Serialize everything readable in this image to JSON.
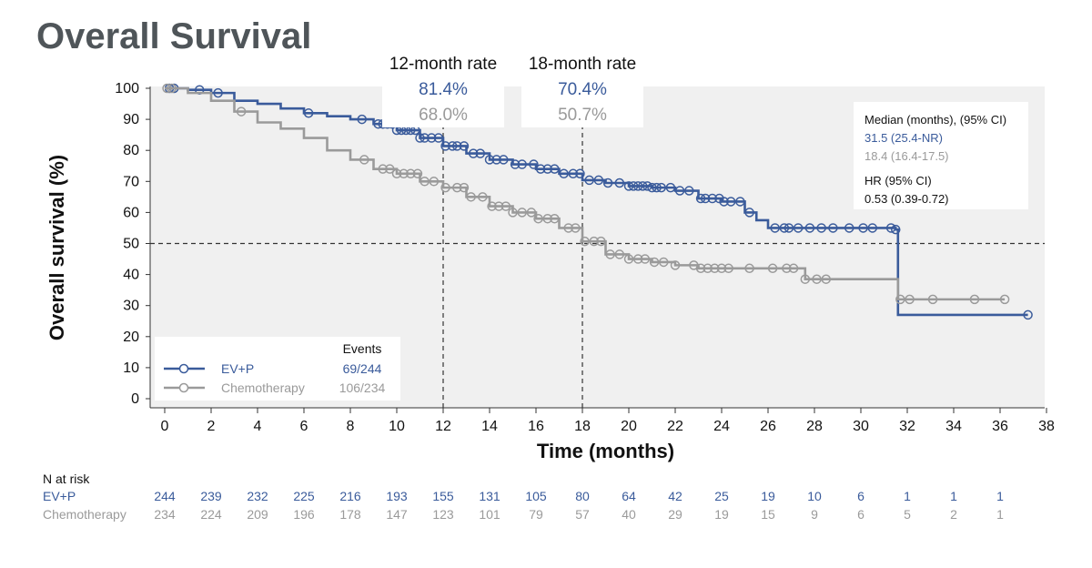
{
  "title": "Overall Survival",
  "colors": {
    "ev": "#3a5b9b",
    "chemo": "#9a9a9a",
    "text": "#111111",
    "panel": "#f0f0f0"
  },
  "chart_data": {
    "type": "line",
    "subtype": "kaplan-meier step plot with censor markers",
    "xlabel": "Time (months)",
    "ylabel": "Overall survival (%)",
    "xlim": [
      0,
      38
    ],
    "ylim": [
      0,
      100
    ],
    "xticks": [
      0,
      2,
      4,
      6,
      8,
      10,
      12,
      14,
      16,
      18,
      20,
      22,
      24,
      26,
      28,
      30,
      32,
      34,
      36,
      38
    ],
    "yticks": [
      0,
      10,
      20,
      30,
      40,
      50,
      60,
      70,
      80,
      90,
      100
    ],
    "grid": false,
    "reference_lines": {
      "horizontal_y": 50,
      "vertical_x": [
        12,
        18
      ]
    },
    "rate_boxes": [
      {
        "label": "12-month rate",
        "ev": "81.4%",
        "chemo": "68.0%",
        "x": 12
      },
      {
        "label": "18-month rate",
        "ev": "70.4%",
        "chemo": "50.7%",
        "x": 18
      }
    ],
    "stats_box": {
      "median_header": "Median (months), (95% CI)",
      "median_ev": "31.5 (25.4-NR)",
      "median_chemo": "18.4 (16.4-17.5)",
      "hr_header": "HR (95% CI)",
      "hr_value": "0.53 (0.39-0.72)"
    },
    "legend": {
      "position": "bottom-left",
      "events_header": "Events",
      "entries": [
        {
          "name": "EV+P",
          "events": "69/244"
        },
        {
          "name": "Chemotherapy",
          "events": "106/234"
        }
      ]
    },
    "series": [
      {
        "name": "EV+P",
        "step_points": [
          [
            0,
            100
          ],
          [
            1,
            99.5
          ],
          [
            2,
            98.5
          ],
          [
            3,
            96
          ],
          [
            4,
            95
          ],
          [
            5,
            93.5
          ],
          [
            6,
            92
          ],
          [
            7,
            91
          ],
          [
            8,
            90
          ],
          [
            9,
            88.5
          ],
          [
            10,
            86.5
          ],
          [
            11,
            84
          ],
          [
            12,
            81.4
          ],
          [
            13,
            79
          ],
          [
            14,
            77
          ],
          [
            15,
            75.5
          ],
          [
            16,
            74
          ],
          [
            17,
            72.5
          ],
          [
            18,
            70.4
          ],
          [
            19,
            69.5
          ],
          [
            20,
            68.5
          ],
          [
            21,
            68
          ],
          [
            22,
            67
          ],
          [
            23,
            64.5
          ],
          [
            24,
            63.5
          ],
          [
            25,
            60
          ],
          [
            25.5,
            57.5
          ],
          [
            26,
            55
          ],
          [
            30,
            55
          ],
          [
            31.5,
            54.5
          ],
          [
            31.6,
            27
          ],
          [
            37.2,
            27
          ]
        ],
        "censor_x": [
          0.2,
          0.4,
          1.5,
          2.3,
          6.2,
          8.5,
          9.2,
          9.4,
          9.6,
          9.8,
          10,
          10.2,
          10.4,
          10.6,
          10.8,
          11,
          11.2,
          11.5,
          11.8,
          12.1,
          12.4,
          12.6,
          12.9,
          13.3,
          13.6,
          14,
          14.3,
          14.6,
          15.1,
          15.4,
          15.9,
          16.2,
          16.5,
          16.8,
          17.2,
          17.6,
          17.9,
          18.3,
          18.7,
          19.1,
          19.6,
          20,
          20.2,
          20.4,
          20.6,
          20.8,
          21,
          21.2,
          21.4,
          21.8,
          22.2,
          22.6,
          23.1,
          23.3,
          23.6,
          23.9,
          24.1,
          24.4,
          24.8,
          25.2,
          26.3,
          26.7,
          26.9,
          27.3,
          27.8,
          28.3,
          28.8,
          29.5,
          30.1,
          30.5,
          31.3,
          31.5,
          37.2
        ]
      },
      {
        "name": "Chemotherapy",
        "step_points": [
          [
            0,
            100
          ],
          [
            1,
            98.5
          ],
          [
            2,
            96
          ],
          [
            3,
            92.5
          ],
          [
            4,
            89
          ],
          [
            5,
            87
          ],
          [
            6,
            84
          ],
          [
            7,
            80
          ],
          [
            8,
            77
          ],
          [
            9,
            74
          ],
          [
            10,
            72.5
          ],
          [
            11,
            70
          ],
          [
            12,
            68
          ],
          [
            13,
            65
          ],
          [
            14,
            62
          ],
          [
            15,
            60
          ],
          [
            16,
            58
          ],
          [
            17,
            55
          ],
          [
            18,
            50.7
          ],
          [
            19,
            46.5
          ],
          [
            20,
            45
          ],
          [
            21,
            44
          ],
          [
            22,
            43
          ],
          [
            23,
            42
          ],
          [
            24,
            42
          ],
          [
            25,
            42
          ],
          [
            26,
            42
          ],
          [
            27,
            42
          ],
          [
            27.6,
            38.5
          ],
          [
            28.5,
            38.5
          ],
          [
            31.5,
            38.5
          ],
          [
            31.6,
            32
          ],
          [
            36.2,
            32
          ]
        ],
        "censor_x": [
          0.1,
          0.3,
          3.3,
          8.6,
          9.4,
          9.7,
          10,
          10.3,
          10.6,
          10.9,
          11.2,
          11.6,
          12.1,
          12.6,
          12.9,
          13.2,
          13.7,
          14.1,
          14.4,
          14.7,
          15,
          15.4,
          15.8,
          16.1,
          16.5,
          16.8,
          17.4,
          17.7,
          18.1,
          18.5,
          18.8,
          19.2,
          19.6,
          20,
          20.4,
          20.7,
          21.1,
          21.5,
          22,
          22.8,
          23.1,
          23.4,
          23.7,
          24,
          24.3,
          25.2,
          26.2,
          26.8,
          27.1,
          27.6,
          28.1,
          28.5,
          31.7,
          32.1,
          33.1,
          34.9,
          36.2
        ]
      }
    ],
    "risk_table": {
      "title": "N at risk",
      "rows": [
        {
          "name": "EV+P",
          "values": [
            "244",
            "239",
            "232",
            "225",
            "216",
            "193",
            "155",
            "131",
            "105",
            "80",
            "64",
            "42",
            "25",
            "19",
            "10",
            "6",
            "1",
            "1",
            "1"
          ]
        },
        {
          "name": "Chemotherapy",
          "values": [
            "234",
            "224",
            "209",
            "196",
            "178",
            "147",
            "123",
            "101",
            "79",
            "57",
            "40",
            "29",
            "19",
            "15",
            "9",
            "6",
            "5",
            "2",
            "1"
          ]
        }
      ]
    }
  }
}
